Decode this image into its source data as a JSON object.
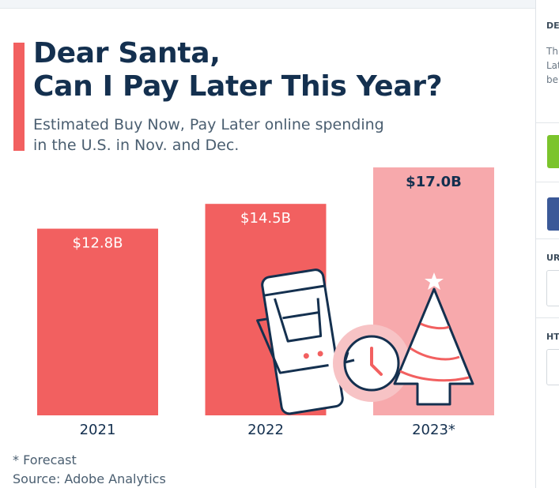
{
  "chart_data": {
    "type": "bar",
    "title": [
      "Dear Santa,",
      "Can I Pay Later This Year?"
    ],
    "subtitle": [
      "Estimated Buy Now, Pay Later online spending",
      "in the U.S. in Nov. and Dec."
    ],
    "categories": [
      "2021",
      "2022",
      "2023*"
    ],
    "values": [
      12.8,
      14.5,
      17.0
    ],
    "value_labels": [
      "$12.8B",
      "$14.5B",
      "$17.0B"
    ],
    "unit": "billion USD",
    "forecast": [
      false,
      false,
      true
    ],
    "ylim": [
      0,
      17.0
    ],
    "grid": false,
    "legend": "none",
    "note": "* Forecast",
    "source": "Source: Adobe Analytics",
    "colors": {
      "actual_bar": "#f26060",
      "forecast_bar": "#f7a9ac",
      "actual_label": "#ffffff",
      "forecast_label": "#14304f",
      "accent": "#f26060",
      "title": "#14304f",
      "text": "#4a5e70"
    }
  },
  "side_panel": {
    "section1_label": "DE",
    "section1_lines": [
      "Th",
      "Lat",
      "be"
    ],
    "url_label": "UR",
    "html_label": "HT",
    "green_button_color": "#7bc42c",
    "blue_button_color": "#3b5998"
  },
  "icons": [
    "shopping-cart-phone-icon",
    "clock-icon",
    "christmas-tree-icon"
  ]
}
